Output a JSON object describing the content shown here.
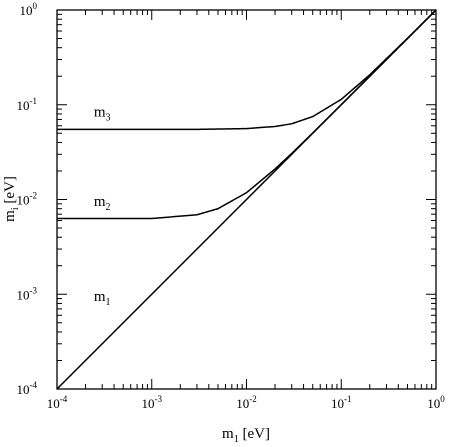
{
  "chart_data": {
    "type": "line",
    "x_scale": "log",
    "y_scale": "log",
    "xlim": [
      0.0001,
      1
    ],
    "ylim": [
      0.0001,
      1
    ],
    "grid": false,
    "xlabel": {
      "main": "m",
      "sub": "1",
      "unit": " [eV]"
    },
    "ylabel": {
      "main": "m",
      "sub": "i",
      "unit": " [eV]"
    },
    "x_ticks": [
      {
        "value": 0.0001,
        "base": "10",
        "exp": "-4"
      },
      {
        "value": 0.001,
        "base": "10",
        "exp": "-3"
      },
      {
        "value": 0.01,
        "base": "10",
        "exp": "-2"
      },
      {
        "value": 0.1,
        "base": "10",
        "exp": "-1"
      },
      {
        "value": 1,
        "base": "10",
        "exp": "0"
      }
    ],
    "y_ticks": [
      {
        "value": 0.0001,
        "base": "10",
        "exp": "-4"
      },
      {
        "value": 0.001,
        "base": "10",
        "exp": "-3"
      },
      {
        "value": 0.01,
        "base": "10",
        "exp": "-2"
      },
      {
        "value": 0.1,
        "base": "10",
        "exp": "-1"
      },
      {
        "value": 1,
        "base": "10",
        "exp": "0"
      }
    ],
    "series": [
      {
        "label_main": "m",
        "label_sub": "3",
        "label_at": [
          0.0003,
          0.075
        ],
        "x": [
          0.0001,
          0.001,
          0.003,
          0.01,
          0.02,
          0.03,
          0.05,
          0.1,
          0.2,
          0.5,
          1
        ],
        "values": [
          0.055,
          0.055,
          0.055,
          0.056,
          0.059,
          0.063,
          0.075,
          0.114,
          0.207,
          0.503,
          1
        ]
      },
      {
        "label_main": "m",
        "label_sub": "2",
        "label_at": [
          0.0003,
          0.0085
        ],
        "x": [
          0.0001,
          0.001,
          0.003,
          0.005,
          0.01,
          0.02,
          0.03,
          0.05,
          0.1,
          0.2,
          0.5,
          1
        ],
        "values": [
          0.0063,
          0.0063,
          0.0069,
          0.008,
          0.0118,
          0.021,
          0.0306,
          0.0504,
          0.1002,
          0.2001,
          0.5,
          1
        ]
      },
      {
        "label_main": "m",
        "label_sub": "1",
        "label_at": [
          0.0003,
          0.00085
        ],
        "x": [
          0.0001,
          1
        ],
        "values": [
          0.0001,
          1
        ]
      }
    ]
  }
}
